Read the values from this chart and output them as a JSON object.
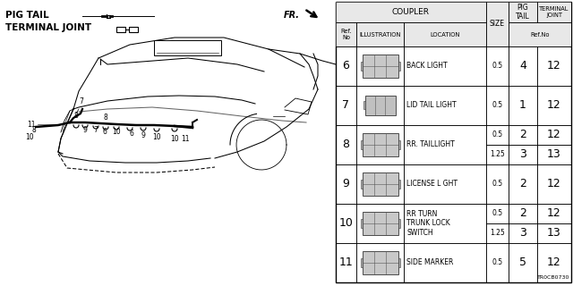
{
  "bg_color": "#ffffff",
  "rows": [
    {
      "ref": "6",
      "location": "BACK LIGHT",
      "sizes": [
        "0.5"
      ],
      "pig": [
        "4"
      ],
      "joint": [
        "12"
      ]
    },
    {
      "ref": "7",
      "location": "LID TAIL LIGHT",
      "sizes": [
        "0.5"
      ],
      "pig": [
        "1"
      ],
      "joint": [
        "12"
      ]
    },
    {
      "ref": "8",
      "location": "RR. TAILLIGHT",
      "sizes": [
        "0.5",
        "1.25"
      ],
      "pig": [
        "2",
        "3"
      ],
      "joint": [
        "12",
        "13"
      ]
    },
    {
      "ref": "9",
      "location": "LICENSE L GHT",
      "sizes": [
        "0.5"
      ],
      "pig": [
        "2"
      ],
      "joint": [
        "12"
      ]
    },
    {
      "ref": "10",
      "location": "RR TURN\nTRUNK LOCK\nSWITCH",
      "sizes": [
        "0.5",
        "1.25"
      ],
      "pig": [
        "2",
        "3"
      ],
      "joint": [
        "12",
        "13"
      ]
    },
    {
      "ref": "11",
      "location": "SIDE MARKER",
      "sizes": [
        "0.5"
      ],
      "pig": [
        "5"
      ],
      "joint": [
        "12"
      ]
    }
  ],
  "legend_pig_tail": "PIG TAIL",
  "legend_terminal_joint": "TERMINAL JOINT",
  "fr_label": "FR.",
  "diagram_code": "TR0CB0730"
}
